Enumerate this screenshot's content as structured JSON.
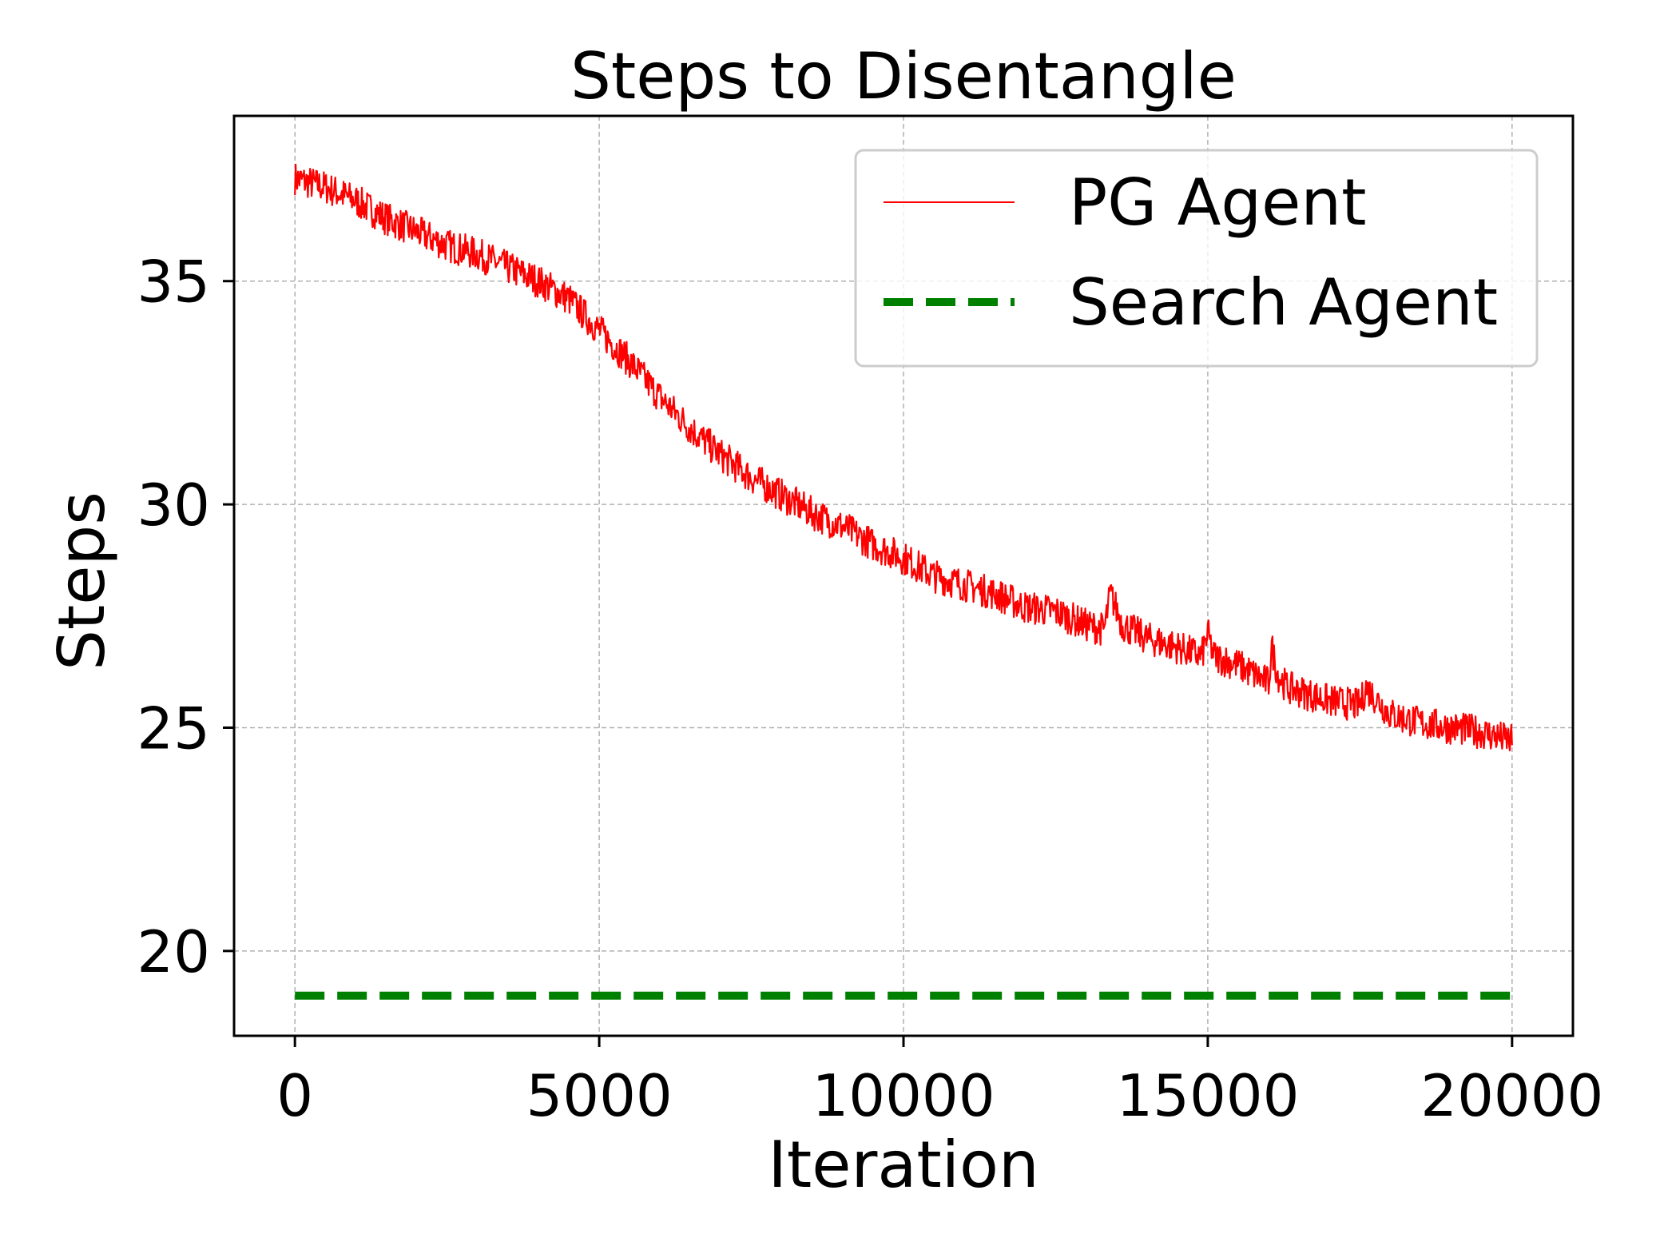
{
  "chart_data": {
    "type": "line",
    "title": "Steps to Disentangle",
    "xlabel": "Iteration",
    "ylabel": "Steps",
    "xlim": [
      -1000,
      21000
    ],
    "ylim": [
      18.1,
      38.7
    ],
    "xticks": [
      0,
      5000,
      10000,
      15000,
      20000
    ],
    "xtick_labels": [
      "0",
      "5000",
      "10000",
      "15000",
      "20000"
    ],
    "yticks": [
      20,
      25,
      30,
      35
    ],
    "ytick_labels": [
      "20",
      "25",
      "30",
      "35"
    ],
    "grid": true,
    "legend_position": "upper-right",
    "series": [
      {
        "name": "PG Agent",
        "color": "#ff0000",
        "style": "solid",
        "x": [
          0,
          250,
          500,
          1000,
          1500,
          2000,
          2500,
          3000,
          3500,
          4000,
          4500,
          5000,
          5500,
          6000,
          6500,
          7000,
          7500,
          8000,
          8500,
          9000,
          9500,
          10000,
          10500,
          11000,
          11500,
          12000,
          12500,
          13000,
          13300,
          13400,
          13600,
          14000,
          14500,
          14900,
          15000,
          15100,
          15500,
          16000,
          16050,
          16150,
          16300,
          17000,
          17500,
          17600,
          18000,
          18500,
          19000,
          19500,
          20000
        ],
        "y": [
          37.3,
          37.2,
          37.1,
          36.8,
          36.4,
          36.1,
          35.8,
          35.6,
          35.3,
          35.0,
          34.6,
          33.9,
          33.2,
          32.4,
          31.7,
          31.1,
          30.6,
          30.2,
          29.8,
          29.5,
          29.1,
          28.8,
          28.4,
          28.2,
          28.0,
          27.7,
          27.6,
          27.3,
          27.2,
          28.0,
          27.3,
          27.0,
          26.8,
          26.6,
          27.1,
          26.6,
          26.4,
          26.0,
          26.8,
          26.2,
          25.9,
          25.6,
          25.5,
          25.9,
          25.3,
          25.1,
          25.0,
          24.9,
          24.7
        ]
      },
      {
        "name": "Search Agent",
        "color": "#008000",
        "style": "dashed",
        "x": [
          0,
          20000
        ],
        "y": [
          19.0,
          19.0
        ]
      }
    ]
  }
}
